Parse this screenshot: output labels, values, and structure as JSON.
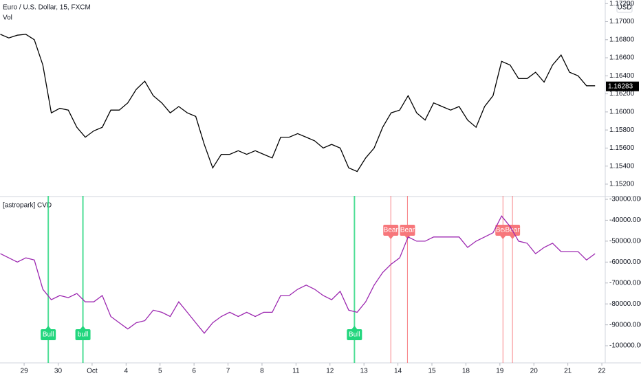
{
  "chart_data": [
    {
      "type": "line",
      "title": "Euro / U.S. Dollar, 15, FXCM",
      "volume_label": "Vol",
      "currency": "USD",
      "color": "#000000",
      "last_price": 1.16283,
      "x": [
        -0.7,
        -0.45,
        -0.2,
        0.05,
        0.3,
        0.55,
        0.8,
        1.05,
        1.3,
        1.55,
        1.8,
        2.05,
        2.3,
        2.55,
        2.8,
        3.05,
        3.3,
        3.55,
        3.8,
        4.05,
        4.3,
        4.55,
        4.8,
        5.05,
        5.3,
        5.55,
        5.8,
        6.05,
        6.3,
        6.55,
        6.8,
        7.05,
        7.3,
        7.55,
        7.8,
        8.05,
        8.3,
        8.55,
        8.8,
        9.05,
        9.3,
        9.55,
        9.8,
        10.05,
        10.3,
        10.55,
        10.8,
        11.05,
        11.3,
        11.55,
        11.8,
        12.05,
        12.3,
        12.55,
        12.8,
        13.05,
        13.3,
        13.55,
        13.8,
        14.05,
        14.3,
        14.55,
        14.8,
        15.05,
        15.3,
        15.55,
        15.8,
        16.05,
        16.3,
        16.55,
        16.8
      ],
      "values": [
        1.1686,
        1.1682,
        1.1685,
        1.1686,
        1.168,
        1.1652,
        1.1599,
        1.1604,
        1.1602,
        1.1583,
        1.1572,
        1.1579,
        1.1583,
        1.1602,
        1.1602,
        1.161,
        1.1625,
        1.1634,
        1.1618,
        1.161,
        1.1599,
        1.1606,
        1.1599,
        1.1595,
        1.1564,
        1.1538,
        1.1553,
        1.1553,
        1.1557,
        1.1553,
        1.1557,
        1.1553,
        1.1549,
        1.1572,
        1.1572,
        1.1576,
        1.1572,
        1.1568,
        1.156,
        1.1564,
        1.156,
        1.1538,
        1.1534,
        1.1549,
        1.156,
        1.1583,
        1.1599,
        1.1602,
        1.1618,
        1.1599,
        1.1591,
        1.161,
        1.1606,
        1.1602,
        1.1606,
        1.1591,
        1.1583,
        1.1606,
        1.1618,
        1.1656,
        1.1652,
        1.1637,
        1.1637,
        1.1644,
        1.1633,
        1.1652,
        1.1663,
        1.1644,
        1.164,
        1.1629,
        1.1629
      ],
      "xlim": [
        -0.71,
        17.1
      ],
      "ylim": [
        1.1507,
        1.1724
      ],
      "yticks": [
        {
          "value": 1.152,
          "label": "1.15200"
        },
        {
          "value": 1.154,
          "label": "1.15400"
        },
        {
          "value": 1.156,
          "label": "1.15600"
        },
        {
          "value": 1.158,
          "label": "1.15800"
        },
        {
          "value": 1.16,
          "label": "1.16000"
        },
        {
          "value": 1.162,
          "label": "1.16200"
        },
        {
          "value": 1.164,
          "label": "1.16400"
        },
        {
          "value": 1.166,
          "label": "1.16600"
        },
        {
          "value": 1.168,
          "label": "1.16800"
        },
        {
          "value": 1.17,
          "label": "1.17000"
        },
        {
          "value": 1.172,
          "label": "1.17200"
        }
      ]
    },
    {
      "type": "line",
      "title": "[astropark] CVD",
      "color": "#9c27b0",
      "x": [
        -0.7,
        -0.45,
        -0.2,
        0.05,
        0.3,
        0.55,
        0.8,
        1.05,
        1.3,
        1.55,
        1.8,
        2.05,
        2.3,
        2.55,
        2.8,
        3.05,
        3.3,
        3.55,
        3.8,
        4.05,
        4.3,
        4.55,
        4.8,
        5.05,
        5.3,
        5.55,
        5.8,
        6.05,
        6.3,
        6.55,
        6.8,
        7.05,
        7.3,
        7.55,
        7.8,
        8.05,
        8.3,
        8.55,
        8.8,
        9.05,
        9.3,
        9.55,
        9.8,
        10.05,
        10.3,
        10.55,
        10.8,
        11.05,
        11.3,
        11.55,
        11.8,
        12.05,
        12.3,
        12.55,
        12.8,
        13.05,
        13.3,
        13.55,
        13.8,
        14.05,
        14.3,
        14.55,
        14.8,
        15.05,
        15.3,
        15.55,
        15.8,
        16.05,
        16.3,
        16.55,
        16.8
      ],
      "values": [
        -56000,
        -58000,
        -60000,
        -58000,
        -59000,
        -73000,
        -78000,
        -76000,
        -77000,
        -75000,
        -79000,
        -79000,
        -76000,
        -86000,
        -89000,
        -92000,
        -89000,
        -88000,
        -83000,
        -84000,
        -86000,
        -79000,
        -84000,
        -89000,
        -94000,
        -89000,
        -86000,
        -84000,
        -86000,
        -84000,
        -86000,
        -84000,
        -84000,
        -76000,
        -76000,
        -73000,
        -71000,
        -73000,
        -76000,
        -78000,
        -74000,
        -83000,
        -84000,
        -79000,
        -71000,
        -65000,
        -61000,
        -58000,
        -48000,
        -50000,
        -50000,
        -48000,
        -48000,
        -48000,
        -48000,
        -53000,
        -50000,
        -48000,
        -46000,
        -38000,
        -43000,
        -50000,
        -51000,
        -56000,
        -53000,
        -51000,
        -55000,
        -55000,
        -55000,
        -59000,
        -56000
      ],
      "signals": [
        {
          "x": 0.71,
          "label": "Bull",
          "color": "#22d67d"
        },
        {
          "x": 1.73,
          "label": "bull",
          "color": "#22d67d"
        },
        {
          "x": 9.72,
          "label": "Bull",
          "color": "#22d67d"
        },
        {
          "x": 10.79,
          "label": "Bear",
          "color": "#f7777b"
        },
        {
          "x": 11.28,
          "label": "Bear",
          "color": "#f7777b"
        },
        {
          "x": 14.09,
          "label": "Bear",
          "color": "#f7777b"
        },
        {
          "x": 14.37,
          "label": "Bear",
          "color": "#f7777b"
        }
      ],
      "xlim": [
        -0.71,
        17.1
      ],
      "ylim": [
        -107200,
        -28360
      ],
      "yticks": [
        {
          "value": -30000,
          "label": "-30000.00000"
        },
        {
          "value": -40000,
          "label": "-40000.00000"
        },
        {
          "value": -50000,
          "label": "-50000.00000"
        },
        {
          "value": -60000,
          "label": "-60000.00000"
        },
        {
          "value": -70000,
          "label": "-70000.00000"
        },
        {
          "value": -80000,
          "label": "-80000.00000"
        },
        {
          "value": -90000,
          "label": "-90000.00000"
        },
        {
          "value": -100000,
          "label": "-100000.00000"
        }
      ],
      "xticks": [
        {
          "value": 0,
          "label": "29"
        },
        {
          "value": 1,
          "label": "30"
        },
        {
          "value": 2,
          "label": "Oct"
        },
        {
          "value": 3,
          "label": "4"
        },
        {
          "value": 4,
          "label": "5"
        },
        {
          "value": 5,
          "label": "6"
        },
        {
          "value": 6,
          "label": "7"
        },
        {
          "value": 7,
          "label": "8"
        },
        {
          "value": 8,
          "label": "11"
        },
        {
          "value": 9,
          "label": "12"
        },
        {
          "value": 10,
          "label": "13"
        },
        {
          "value": 11,
          "label": "14"
        },
        {
          "value": 12,
          "label": "15"
        },
        {
          "value": 13,
          "label": "18"
        },
        {
          "value": 14,
          "label": "19"
        },
        {
          "value": 15,
          "label": "20"
        },
        {
          "value": 16,
          "label": "21"
        },
        {
          "value": 17,
          "label": "22"
        }
      ]
    }
  ]
}
